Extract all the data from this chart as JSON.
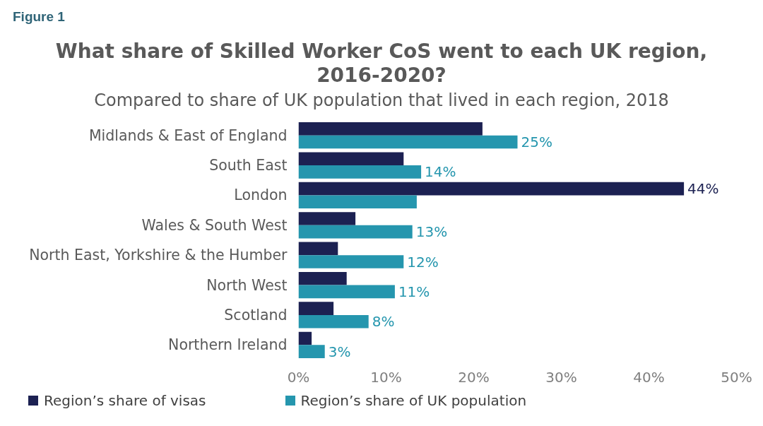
{
  "chart_data": {
    "type": "bar",
    "orientation": "horizontal",
    "title": "What share of Skilled Worker CoS went to each UK region, 2016-2020?",
    "subtitle": "Compared to share of UK population that lived in each region, 2018",
    "annotations": [
      "Figure 1"
    ],
    "categories": [
      "Midlands & East of England",
      "South East",
      "London",
      "Wales & South West",
      "North East, Yorkshire & the Humber",
      "North West",
      "Scotland",
      "Northern Ireland"
    ],
    "series": [
      {
        "name": "Region’s share of visas",
        "color": "#1c2152",
        "values": [
          21,
          12,
          44,
          6.5,
          4.5,
          5.5,
          4,
          1.5
        ],
        "value_labels": [
          null,
          null,
          "44%",
          null,
          null,
          null,
          null,
          null
        ]
      },
      {
        "name": "Region’s share of UK population",
        "color": "#2596ae",
        "values": [
          25,
          14,
          13.5,
          13,
          12,
          11,
          8,
          3
        ],
        "value_labels": [
          "25%",
          "14%",
          null,
          "13%",
          "12%",
          "11%",
          "8%",
          "3%"
        ]
      }
    ],
    "xlim": [
      0,
      50
    ],
    "xticks": [
      {
        "value": 0,
        "label": "0%"
      },
      {
        "value": 10,
        "label": "10%"
      },
      {
        "value": 20,
        "label": "20%"
      },
      {
        "value": 30,
        "label": "30%"
      },
      {
        "value": 40,
        "label": "40%"
      },
      {
        "value": 50,
        "label": "50%"
      }
    ],
    "grid": false,
    "legend": "bottom"
  }
}
